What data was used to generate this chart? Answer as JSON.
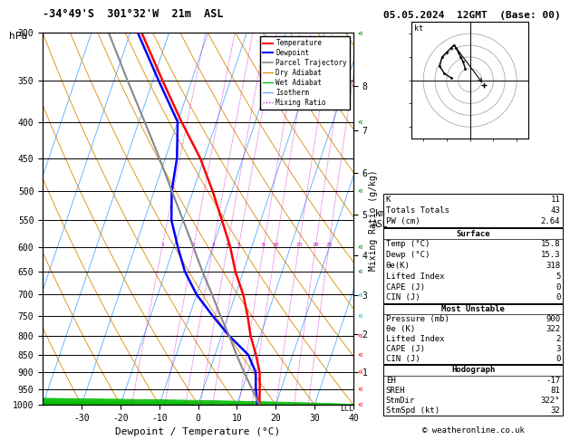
{
  "title_left": "-34°49'S  301°32'W  21m  ASL",
  "title_right": "05.05.2024  12GMT  (Base: 00)",
  "xlabel": "Dewpoint / Temperature (°C)",
  "ylabel_left": "hPa",
  "pressure_levels": [
    300,
    350,
    400,
    450,
    500,
    550,
    600,
    650,
    700,
    750,
    800,
    850,
    900,
    950,
    1000
  ],
  "temp_min": -40,
  "temp_max": 40,
  "p_min": 300,
  "p_max": 1000,
  "skew_factor": 27,
  "temperature_profile": {
    "pressure": [
      1000,
      950,
      900,
      850,
      800,
      750,
      700,
      650,
      600,
      550,
      500,
      450,
      400,
      350,
      300
    ],
    "temp": [
      15.8,
      14.5,
      13.0,
      10.5,
      7.5,
      5.0,
      2.0,
      -2.0,
      -5.5,
      -10.0,
      -15.0,
      -21.0,
      -29.0,
      -37.5,
      -47.0
    ]
  },
  "dewpoint_profile": {
    "pressure": [
      1000,
      950,
      900,
      850,
      800,
      750,
      700,
      650,
      600,
      550,
      500,
      450,
      400,
      350,
      300
    ],
    "temp": [
      15.3,
      13.5,
      12.0,
      8.5,
      2.0,
      -4.0,
      -10.0,
      -15.0,
      -19.0,
      -23.0,
      -25.5,
      -27.0,
      -30.0,
      -38.5,
      -48.0
    ]
  },
  "parcel_profile": {
    "pressure": [
      1000,
      950,
      900,
      850,
      800,
      750,
      700,
      650,
      600,
      550,
      500,
      450,
      400,
      350,
      300
    ],
    "temp": [
      15.8,
      12.5,
      9.0,
      5.5,
      2.0,
      -2.0,
      -6.0,
      -10.5,
      -15.0,
      -20.0,
      -25.5,
      -31.5,
      -38.5,
      -46.5,
      -55.5
    ]
  },
  "wind_barbs_colors": [
    "red",
    "red",
    "red",
    "red",
    "red",
    "cyan",
    "cyan",
    "green",
    "green",
    "green",
    "green",
    "green"
  ],
  "wind_barb_pressures": [
    300,
    400,
    500,
    600,
    650,
    700,
    750,
    800,
    850,
    900,
    950,
    1000
  ],
  "km_heights": [
    1,
    2,
    3,
    4,
    5,
    6,
    7,
    8
  ],
  "km_pressures_approx": [
    899,
    795,
    701,
    616,
    540,
    472,
    411,
    356
  ],
  "mixing_ratio_values": [
    1,
    2,
    3,
    4,
    5,
    8,
    10,
    15,
    20,
    25
  ],
  "table1_rows": [
    [
      "K",
      "11"
    ],
    [
      "Totals Totals",
      "43"
    ],
    [
      "PW (cm)",
      "2.64"
    ]
  ],
  "table2_title": "Surface",
  "table2_rows": [
    [
      "Temp (°C)",
      "15.8"
    ],
    [
      "Dewp (°C)",
      "15.3"
    ],
    [
      "θe(K)",
      "318"
    ],
    [
      "Lifted Index",
      "5"
    ],
    [
      "CAPE (J)",
      "0"
    ],
    [
      "CIN (J)",
      "0"
    ]
  ],
  "table3_title": "Most Unstable",
  "table3_rows": [
    [
      "Pressure (mb)",
      "900"
    ],
    [
      "θe (K)",
      "322"
    ],
    [
      "Lifted Index",
      "2"
    ],
    [
      "CAPE (J)",
      "3"
    ],
    [
      "CIN (J)",
      "0"
    ]
  ],
  "table4_title": "Hodograph",
  "table4_rows": [
    [
      "EH",
      "-17"
    ],
    [
      "SREH",
      "81"
    ],
    [
      "StmDir",
      "322°"
    ],
    [
      "StmSpd (kt)",
      "32"
    ]
  ],
  "copyright": "© weatheronline.co.uk",
  "hodo_u": [
    -2,
    -3,
    -4,
    -5,
    -6,
    -7,
    -8,
    -10,
    -12,
    -13,
    -11,
    -8
  ],
  "hodo_v": [
    5,
    8,
    10,
    12,
    14,
    15,
    14,
    12,
    10,
    6,
    3,
    1
  ],
  "storm_u": 6,
  "storm_v": -2,
  "wind_barb_sizes_colors": [
    [
      300,
      "green"
    ],
    [
      400,
      "green"
    ],
    [
      500,
      "green"
    ],
    [
      600,
      "green"
    ],
    [
      650,
      "green"
    ],
    [
      700,
      "cyan"
    ],
    [
      750,
      "cyan"
    ],
    [
      800,
      "red"
    ],
    [
      850,
      "red"
    ],
    [
      900,
      "red"
    ],
    [
      950,
      "red"
    ],
    [
      1000,
      "red"
    ]
  ]
}
